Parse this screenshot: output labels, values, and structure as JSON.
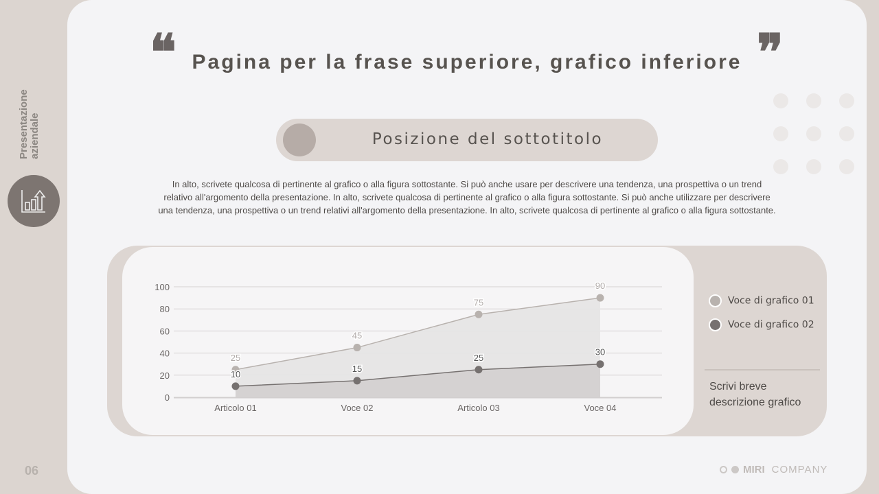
{
  "sidebar": {
    "title": "Presentazione aziendale",
    "icon": "bar-chart-growth-icon",
    "page_number": "06"
  },
  "header": {
    "title": "Pagina per la frase superiore, grafico inferiore",
    "open_quote": "❝",
    "close_quote": "❞"
  },
  "subtitle": "Posizione del sottotitolo",
  "body_text": "In alto, scrivete qualcosa di pertinente al grafico o alla figura sottostante. Si può anche usare per descrivere una tendenza, una prospettiva o un trend relativo all'argomento della presentazione. In alto, scrivete qualcosa di pertinente al grafico o alla figura sottostante. Si può anche utilizzare per descrivere una tendenza, una prospettiva o un trend relativi all'argomento della presentazione. In alto, scrivete qualcosa di pertinente al grafico o alla figura sottostante.",
  "chart_data": {
    "type": "area",
    "categories": [
      "Articolo 01",
      "Voce 02",
      "Articolo 03",
      "Voce 04"
    ],
    "ylim": [
      0,
      100
    ],
    "yticks": [
      0,
      20,
      40,
      60,
      80,
      100
    ],
    "grid": true,
    "legend_placement": "right",
    "series": [
      {
        "name": "Voce di grafico 01",
        "values": [
          25,
          45,
          75,
          90
        ],
        "color": "#b8b2ae"
      },
      {
        "name": "Voce di grafico 02",
        "values": [
          10,
          15,
          25,
          30
        ],
        "color": "#767170"
      }
    ]
  },
  "chart_description": "Scrivi breve descrizione grafico",
  "brand": {
    "name": "MIRI",
    "suffix": "COMPANY"
  }
}
